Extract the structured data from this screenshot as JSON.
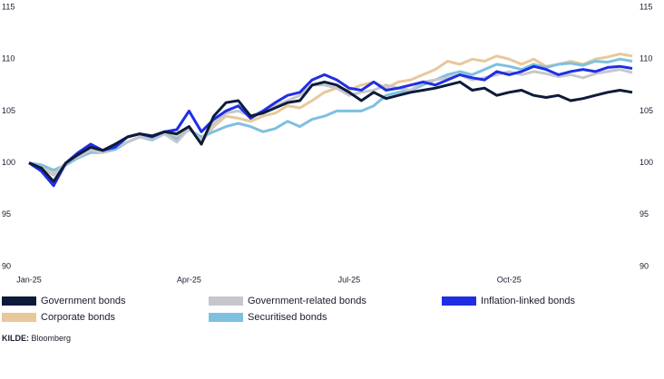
{
  "chart_data": {
    "type": "line",
    "categories": [
      "Jan-25",
      null,
      null,
      null,
      null,
      null,
      null,
      null,
      null,
      null,
      null,
      null,
      null,
      "Apr-25",
      null,
      null,
      null,
      null,
      null,
      null,
      null,
      null,
      null,
      null,
      null,
      null,
      "Jul-25",
      null,
      null,
      null,
      null,
      null,
      null,
      null,
      null,
      null,
      null,
      null,
      null,
      "Oct-25",
      null,
      null,
      null,
      null,
      null,
      null,
      null,
      null,
      null,
      null
    ],
    "series": [
      {
        "name": "Government bonds",
        "color": "#0d1b3a",
        "values": [
          100,
          99.5,
          98.2,
          100,
          100.8,
          101.5,
          101.2,
          101.8,
          102.5,
          102.8,
          102.6,
          103,
          102.8,
          103.5,
          101.8,
          104.5,
          105.8,
          106,
          104.5,
          104.8,
          105.3,
          105.8,
          106,
          107.5,
          107.8,
          107.5,
          106.8,
          106,
          106.8,
          106.2,
          106.5,
          106.8,
          107,
          107.2,
          107.5,
          107.8,
          107,
          107.2,
          106.5,
          106.8,
          107,
          106.5,
          106.3,
          106.5,
          106,
          106.2,
          106.5,
          106.8,
          107,
          106.8
        ]
      },
      {
        "name": "Government-related bonds",
        "color": "#c6c7cc",
        "values": [
          100,
          99.6,
          98.8,
          100,
          100.6,
          101.2,
          101,
          101.5,
          102,
          102.5,
          102.3,
          102.8,
          102,
          103.3,
          102.2,
          103.8,
          104.8,
          105,
          104.5,
          105,
          105.5,
          106,
          106.5,
          107.5,
          107.5,
          107.2,
          106.5,
          106.8,
          107,
          107.5,
          107.2,
          107,
          107.8,
          108,
          108.2,
          108.5,
          108,
          108.2,
          108.5,
          108.8,
          108.5,
          108.8,
          108.6,
          108.3,
          108.5,
          108.2,
          108.6,
          108.8,
          109,
          108.7
        ]
      },
      {
        "name": "Inflation-linked bonds",
        "color": "#1f2ee6",
        "values": [
          100,
          99.2,
          97.8,
          100,
          101,
          101.8,
          101.2,
          101.5,
          102.5,
          102.8,
          102.5,
          103,
          103.2,
          105,
          103,
          104.2,
          105,
          105.5,
          104.3,
          105,
          105.8,
          106.5,
          106.8,
          108,
          108.5,
          108,
          107.2,
          107,
          107.8,
          107,
          107.2,
          107.5,
          107.8,
          107.5,
          108,
          108.5,
          108.2,
          108,
          108.8,
          108.5,
          108.8,
          109.3,
          109,
          108.5,
          108.8,
          109,
          108.8,
          109.2,
          109.3,
          109.1
        ]
      },
      {
        "name": "Corporate bonds",
        "color": "#e8c89a",
        "values": [
          100,
          99.7,
          99,
          100,
          100.5,
          101,
          101.2,
          101.5,
          102,
          102.5,
          102.3,
          103,
          102.5,
          103.5,
          102,
          103.5,
          104.5,
          104.3,
          104,
          104.5,
          104.8,
          105.5,
          105.3,
          106,
          106.8,
          107.2,
          107,
          107.5,
          107.8,
          107.2,
          107.8,
          108,
          108.5,
          109,
          109.8,
          109.5,
          110,
          109.8,
          110.3,
          110,
          109.5,
          110,
          109.3,
          109.5,
          109.8,
          109.5,
          110,
          110.2,
          110.5,
          110.3
        ]
      },
      {
        "name": "Securitised bonds",
        "color": "#7ec0e0",
        "values": [
          100,
          99.8,
          99.3,
          99.8,
          100.5,
          101,
          101,
          101.3,
          102,
          102.5,
          102.2,
          102.8,
          102.3,
          103.2,
          102.5,
          103,
          103.5,
          103.8,
          103.5,
          103,
          103.3,
          104,
          103.5,
          104.2,
          104.5,
          105,
          105,
          105,
          105.5,
          106.5,
          106.8,
          107,
          107.5,
          108,
          108.5,
          108.8,
          108.5,
          109,
          109.5,
          109.3,
          109,
          109.5,
          109.2,
          109.5,
          109.6,
          109.4,
          109.8,
          109.7,
          110,
          109.8
        ]
      }
    ],
    "ylim": [
      90,
      115
    ],
    "yticks": [
      90,
      95,
      100,
      105,
      110,
      115
    ],
    "y2lim": [
      90,
      115
    ],
    "y2ticks": [
      90,
      95,
      100,
      105,
      110,
      115
    ],
    "source": {
      "label": "KILDE:",
      "text": "Bloomberg"
    }
  }
}
